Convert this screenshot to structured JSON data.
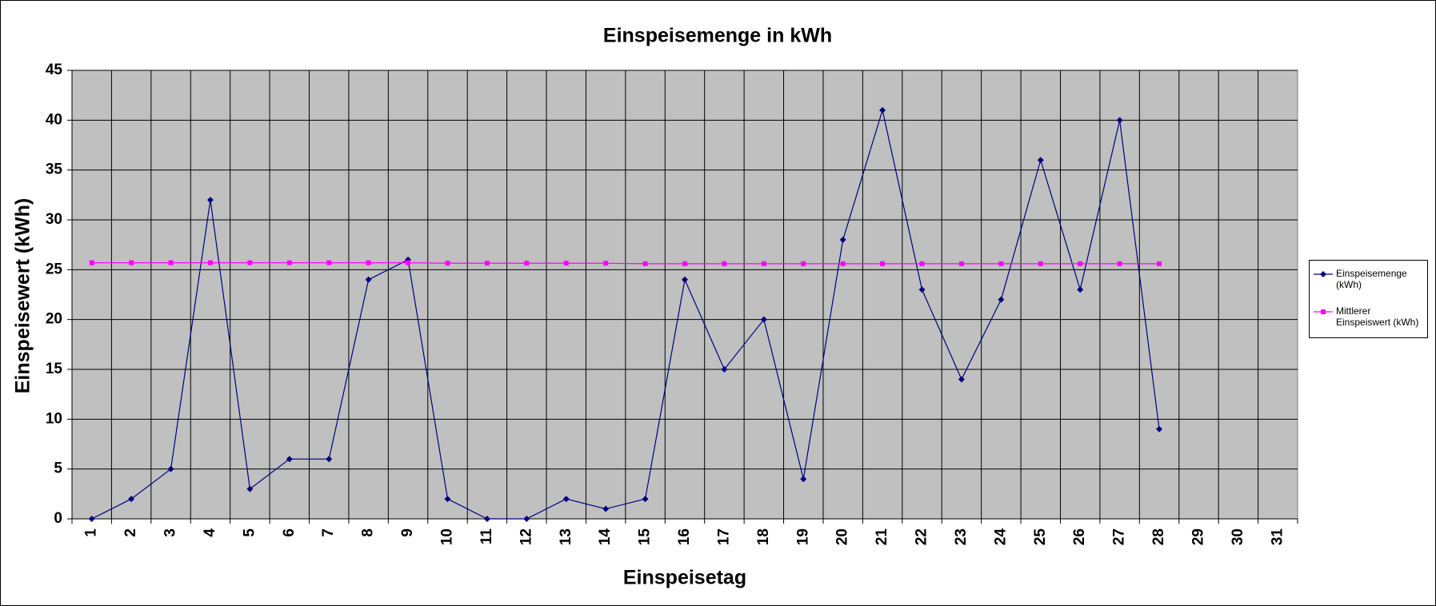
{
  "chart_data": {
    "type": "line",
    "title": "Einspeisemenge in kWh",
    "x_label": "Einspeisetag",
    "y_label": "Einspeisewert  (kWh)",
    "categories": [
      "1",
      "2",
      "3",
      "4",
      "5",
      "6",
      "7",
      "8",
      "9",
      "10",
      "11",
      "12",
      "13",
      "14",
      "15",
      "16",
      "17",
      "18",
      "19",
      "20",
      "21",
      "22",
      "23",
      "24",
      "25",
      "26",
      "27",
      "28",
      "29",
      "30",
      "31"
    ],
    "series": [
      {
        "name": "Einspeisemenge (kWh)",
        "color": "#000080",
        "marker": "diamond",
        "values": [
          0,
          2,
          5,
          32,
          3,
          6,
          6,
          24,
          26,
          2,
          0,
          0,
          2,
          1,
          2,
          24,
          15,
          20,
          4,
          28,
          41,
          23,
          14,
          22,
          36,
          23,
          40,
          9,
          null,
          null,
          null
        ]
      },
      {
        "name": "Mittlerer Einspeiswert (kWh)",
        "color": "#ff00ff",
        "marker": "square",
        "values": [
          25.7,
          25.7,
          25.7,
          25.7,
          25.7,
          25.7,
          25.7,
          25.7,
          25.7,
          25.65,
          25.65,
          25.65,
          25.65,
          25.65,
          25.6,
          25.6,
          25.6,
          25.6,
          25.6,
          25.6,
          25.6,
          25.6,
          25.6,
          25.6,
          25.6,
          25.6,
          25.6,
          25.6,
          null,
          null,
          null
        ]
      }
    ],
    "ylim": [
      0,
      45
    ],
    "yticks": [
      0,
      5,
      10,
      15,
      20,
      25,
      30,
      35,
      40,
      45
    ],
    "grid": true,
    "legend": "right",
    "plot_background": "#c0c0c0"
  }
}
